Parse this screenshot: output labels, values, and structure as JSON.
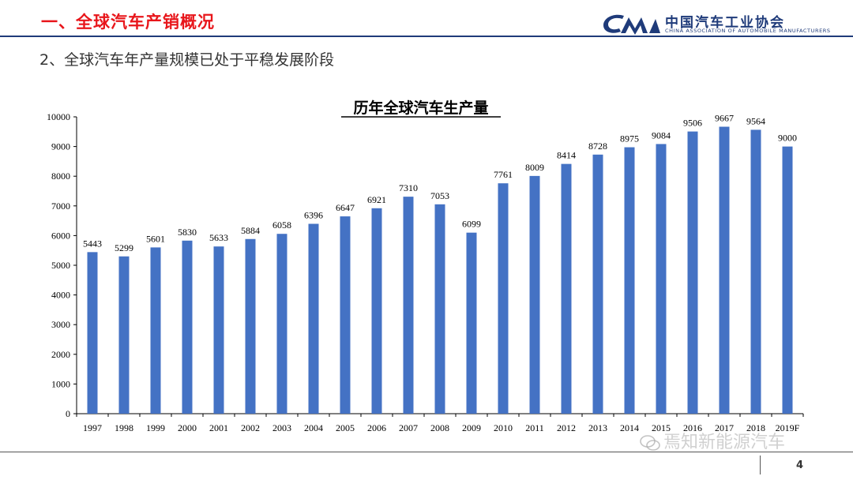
{
  "header": {
    "title": "一、全球汽车产销概况",
    "logo_cn": "中国汽车工业协会",
    "logo_en": "CHINA ASSOCIATION OF AUTOMOBILE MANUFACTURERS"
  },
  "subtitle": "2、全球汽车年产量规模已处于平稳发展阶段",
  "footer": {
    "page_number": "4",
    "watermark": "焉知新能源汽车"
  },
  "colors": {
    "accent_red": "#e8161b",
    "brand_blue": "#1f3b7a",
    "bar_blue": "#4472c4"
  },
  "chart_data": {
    "type": "bar",
    "title": "历年全球汽车生产量",
    "categories": [
      "1997",
      "1998",
      "1999",
      "2000",
      "2001",
      "2002",
      "2003",
      "2004",
      "2005",
      "2006",
      "2007",
      "2008",
      "2009",
      "2010",
      "2011",
      "2012",
      "2013",
      "2014",
      "2015",
      "2016",
      "2017",
      "2018",
      "2019F"
    ],
    "values": [
      5443,
      5299,
      5601,
      5830,
      5633,
      5884,
      6058,
      6396,
      6647,
      6921,
      7310,
      7053,
      6099,
      7761,
      8009,
      8414,
      8728,
      8975,
      9084,
      9506,
      9667,
      9564,
      9000
    ],
    "ylim": [
      0,
      10000
    ],
    "yticks": [
      0,
      1000,
      2000,
      3000,
      4000,
      5000,
      6000,
      7000,
      8000,
      9000,
      10000
    ],
    "xlabel": "",
    "ylabel": "",
    "grid": false,
    "legend": "none"
  }
}
